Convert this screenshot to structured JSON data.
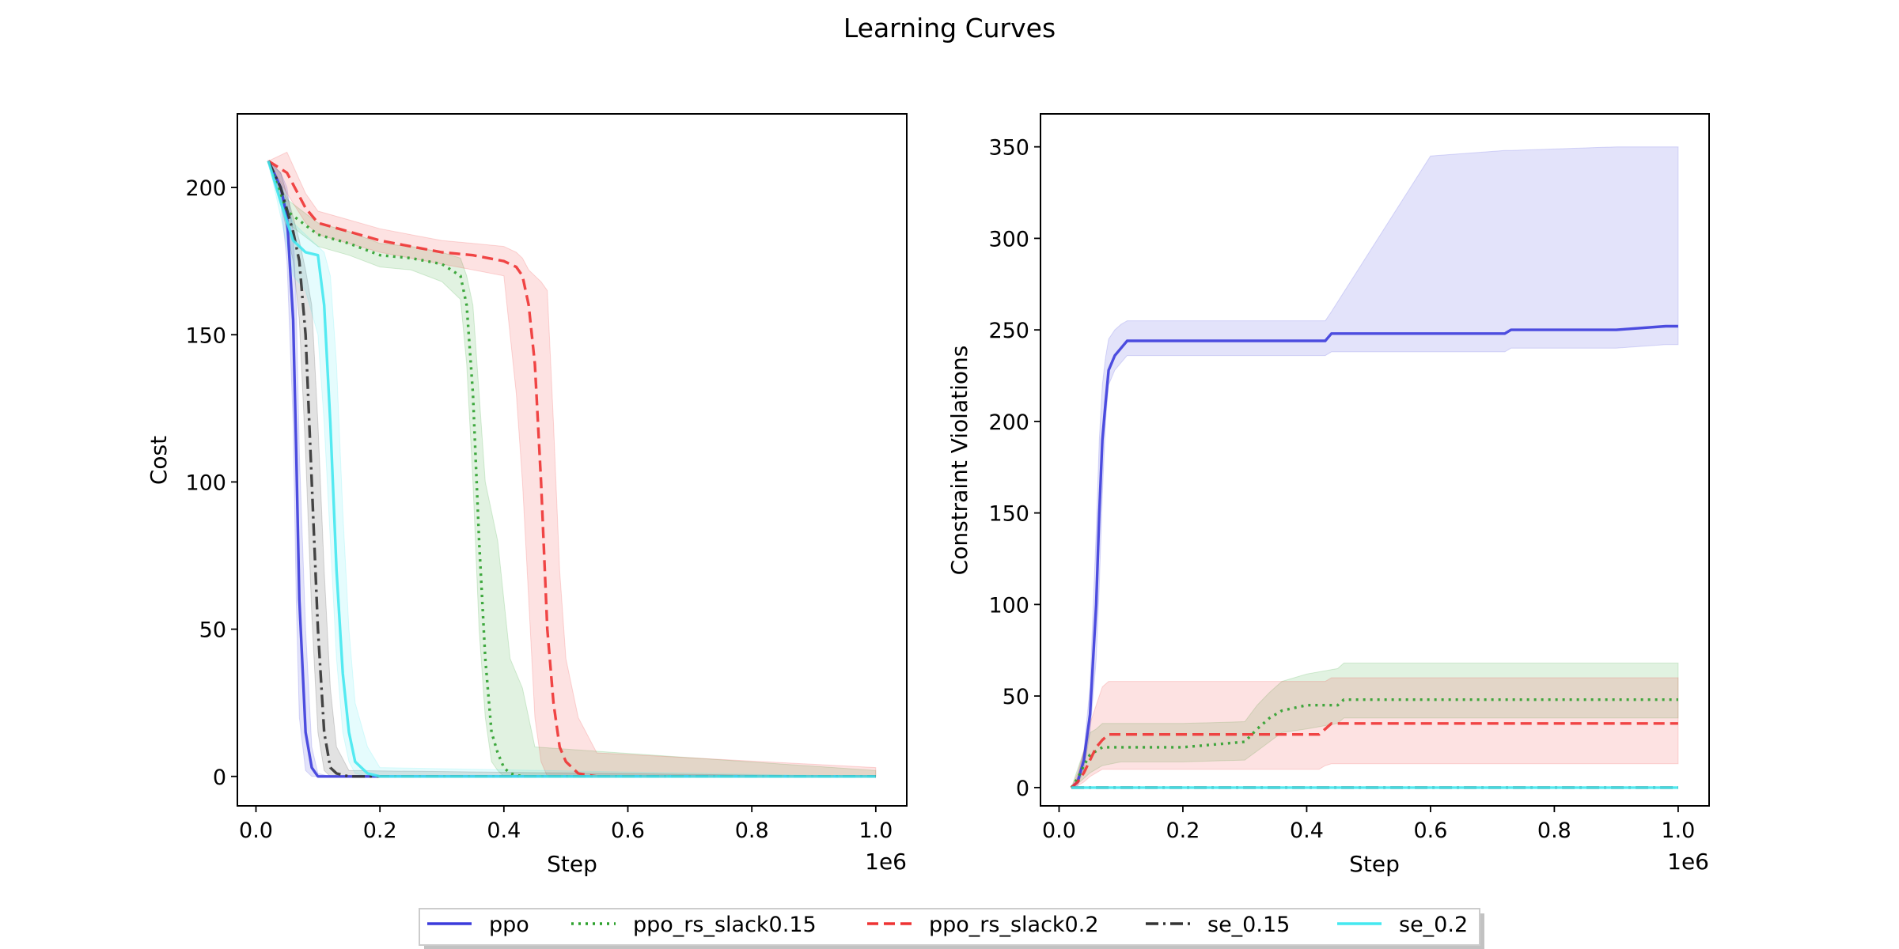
{
  "figure_title": "Learning Curves",
  "legend": {
    "entries": [
      {
        "label": "ppo",
        "color": "#3b3bdb",
        "style": "solid"
      },
      {
        "label": "ppo_rs_slack0.15",
        "color": "#2ca02c",
        "style": "dotted"
      },
      {
        "label": "ppo_rs_slack0.2",
        "color": "#ee3333",
        "style": "dashed"
      },
      {
        "label": "se_0.15",
        "color": "#333333",
        "style": "dashdot"
      },
      {
        "label": "se_0.2",
        "color": "#44e8f0",
        "style": "solid"
      }
    ]
  },
  "chart_data": [
    {
      "type": "line",
      "title": "",
      "xlabel": "Step",
      "ylabel": "Cost",
      "x_multiplier": "1e6",
      "xlim": [
        -0.03,
        1.05
      ],
      "ylim": [
        -10,
        225
      ],
      "xticks": [
        0.0,
        0.2,
        0.4,
        0.6,
        0.8,
        1.0
      ],
      "xtick_labels": [
        "0.0",
        "0.2",
        "0.4",
        "0.6",
        "0.8",
        "1.0"
      ],
      "yticks": [
        0,
        50,
        100,
        150,
        200
      ],
      "ytick_labels": [
        "0",
        "50",
        "100",
        "150",
        "200"
      ],
      "grid": false,
      "series": [
        {
          "name": "ppo",
          "color": "#3b3bdb",
          "style": "solid",
          "x": [
            0.02,
            0.04,
            0.05,
            0.06,
            0.065,
            0.07,
            0.08,
            0.09,
            0.1,
            0.12,
            1.0
          ],
          "y": [
            209,
            200,
            190,
            155,
            110,
            60,
            15,
            3,
            0,
            0,
            0
          ],
          "lower": [
            209,
            195,
            175,
            120,
            60,
            20,
            2,
            0,
            0,
            0,
            0
          ],
          "upper": [
            209,
            205,
            200,
            185,
            160,
            110,
            50,
            10,
            1,
            0,
            0
          ]
        },
        {
          "name": "ppo_rs_slack0.15",
          "color": "#2ca02c",
          "style": "dotted",
          "x": [
            0.02,
            0.05,
            0.1,
            0.15,
            0.2,
            0.25,
            0.3,
            0.33,
            0.34,
            0.35,
            0.36,
            0.37,
            0.38,
            0.39,
            0.4,
            0.41,
            0.43,
            0.45,
            1.0
          ],
          "y": [
            209,
            192,
            184,
            181,
            177,
            176,
            174,
            170,
            160,
            130,
            80,
            40,
            15,
            8,
            3,
            1,
            0,
            0,
            0
          ],
          "lower": [
            209,
            188,
            180,
            177,
            173,
            172,
            168,
            162,
            140,
            100,
            50,
            20,
            5,
            2,
            0,
            0,
            0,
            0,
            0
          ],
          "upper": [
            209,
            196,
            188,
            185,
            181,
            180,
            178,
            176,
            170,
            160,
            130,
            100,
            90,
            80,
            60,
            40,
            30,
            10,
            2
          ]
        },
        {
          "name": "ppo_rs_slack0.2",
          "color": "#ee3333",
          "style": "dashed",
          "x": [
            0.02,
            0.05,
            0.08,
            0.1,
            0.15,
            0.2,
            0.25,
            0.3,
            0.35,
            0.4,
            0.42,
            0.43,
            0.44,
            0.45,
            0.46,
            0.47,
            0.48,
            0.49,
            0.5,
            0.52,
            0.55,
            1.0
          ],
          "y": [
            209,
            205,
            193,
            188,
            185,
            182,
            180,
            178,
            177,
            175,
            173,
            170,
            160,
            140,
            100,
            50,
            25,
            10,
            5,
            1,
            0,
            0
          ],
          "lower": [
            209,
            198,
            188,
            184,
            181,
            178,
            176,
            174,
            172,
            170,
            130,
            100,
            60,
            20,
            5,
            0,
            0,
            0,
            0,
            0,
            0,
            0
          ],
          "upper": [
            209,
            212,
            198,
            192,
            189,
            186,
            184,
            182,
            181,
            180,
            178,
            176,
            172,
            170,
            168,
            165,
            120,
            70,
            40,
            20,
            8,
            3
          ]
        },
        {
          "name": "se_0.15",
          "color": "#333333",
          "style": "dashdot",
          "x": [
            0.02,
            0.04,
            0.06,
            0.07,
            0.08,
            0.09,
            0.1,
            0.11,
            0.12,
            0.13,
            0.15,
            1.0
          ],
          "y": [
            209,
            200,
            185,
            175,
            150,
            100,
            50,
            15,
            3,
            1,
            0,
            0
          ],
          "lower": [
            209,
            195,
            175,
            155,
            110,
            55,
            15,
            2,
            0,
            0,
            0,
            0
          ],
          "upper": [
            209,
            205,
            190,
            182,
            172,
            160,
            120,
            70,
            30,
            10,
            2,
            0
          ]
        },
        {
          "name": "se_0.2",
          "color": "#44e8f0",
          "style": "solid",
          "x": [
            0.02,
            0.04,
            0.06,
            0.08,
            0.1,
            0.11,
            0.12,
            0.13,
            0.14,
            0.15,
            0.16,
            0.18,
            0.2,
            1.0
          ],
          "y": [
            209,
            195,
            182,
            178,
            177,
            160,
            120,
            70,
            35,
            15,
            5,
            1,
            0,
            0
          ],
          "lower": [
            209,
            190,
            170,
            165,
            150,
            120,
            80,
            40,
            15,
            5,
            1,
            0,
            0,
            0
          ],
          "upper": [
            209,
            200,
            188,
            184,
            180,
            178,
            170,
            140,
            90,
            50,
            25,
            10,
            3,
            0
          ]
        }
      ]
    },
    {
      "type": "line",
      "title": "",
      "xlabel": "Step",
      "ylabel": "Constraint Violations",
      "x_multiplier": "1e6",
      "xlim": [
        -0.03,
        1.05
      ],
      "ylim": [
        -10,
        368
      ],
      "xticks": [
        0.0,
        0.2,
        0.4,
        0.6,
        0.8,
        1.0
      ],
      "xtick_labels": [
        "0.0",
        "0.2",
        "0.4",
        "0.6",
        "0.8",
        "1.0"
      ],
      "yticks": [
        0,
        50,
        100,
        150,
        200,
        250,
        300,
        350
      ],
      "ytick_labels": [
        "0",
        "50",
        "100",
        "150",
        "200",
        "250",
        "300",
        "350"
      ],
      "grid": false,
      "series": [
        {
          "name": "ppo",
          "color": "#3b3bdb",
          "style": "solid",
          "x": [
            0.02,
            0.03,
            0.04,
            0.05,
            0.06,
            0.065,
            0.07,
            0.075,
            0.08,
            0.09,
            0.1,
            0.11,
            0.2,
            0.3,
            0.43,
            0.44,
            0.6,
            0.72,
            0.73,
            0.9,
            0.98,
            1.0
          ],
          "y": [
            0,
            3,
            15,
            40,
            100,
            150,
            190,
            210,
            228,
            236,
            240,
            244,
            244,
            244,
            244,
            248,
            248,
            248,
            250,
            250,
            252,
            252
          ],
          "lower": [
            0,
            1,
            10,
            30,
            70,
            110,
            160,
            200,
            220,
            228,
            232,
            236,
            236,
            236,
            236,
            238,
            238,
            238,
            240,
            240,
            242,
            242
          ],
          "upper": [
            0,
            6,
            20,
            55,
            140,
            190,
            220,
            235,
            245,
            250,
            253,
            255,
            255,
            255,
            255,
            260,
            345,
            348,
            348,
            350,
            350,
            350
          ]
        },
        {
          "name": "ppo_rs_slack0.15",
          "color": "#2ca02c",
          "style": "dotted",
          "x": [
            0.02,
            0.03,
            0.04,
            0.05,
            0.06,
            0.07,
            0.1,
            0.2,
            0.3,
            0.32,
            0.34,
            0.36,
            0.4,
            0.45,
            0.46,
            0.6,
            0.8,
            1.0
          ],
          "y": [
            0,
            5,
            12,
            18,
            20,
            22,
            22,
            22,
            25,
            32,
            38,
            42,
            45,
            45,
            48,
            48,
            48,
            48
          ],
          "lower": [
            0,
            2,
            5,
            8,
            10,
            12,
            14,
            14,
            15,
            20,
            25,
            30,
            32,
            35,
            38,
            38,
            38,
            38
          ],
          "upper": [
            0,
            10,
            20,
            30,
            32,
            35,
            35,
            35,
            36,
            45,
            52,
            58,
            62,
            65,
            68,
            68,
            68,
            68
          ]
        },
        {
          "name": "ppo_rs_slack0.2",
          "color": "#ee3333",
          "style": "dashed",
          "x": [
            0.02,
            0.03,
            0.04,
            0.05,
            0.06,
            0.07,
            0.08,
            0.15,
            0.3,
            0.42,
            0.43,
            0.44,
            0.6,
            0.8,
            1.0
          ],
          "y": [
            0,
            3,
            8,
            15,
            22,
            26,
            29,
            29,
            29,
            29,
            32,
            35,
            35,
            35,
            35
          ],
          "lower": [
            0,
            1,
            3,
            6,
            8,
            10,
            10,
            10,
            10,
            10,
            12,
            13,
            13,
            13,
            13
          ],
          "upper": [
            0,
            8,
            20,
            35,
            45,
            55,
            58,
            58,
            58,
            58,
            58,
            60,
            60,
            60,
            60
          ]
        },
        {
          "name": "se_0.15",
          "color": "#333333",
          "style": "dashdot",
          "x": [
            0.02,
            1.0
          ],
          "y": [
            0,
            0
          ],
          "lower": [
            0,
            0
          ],
          "upper": [
            0,
            0
          ]
        },
        {
          "name": "se_0.2",
          "color": "#44e8f0",
          "style": "solid",
          "x": [
            0.02,
            1.0
          ],
          "y": [
            0,
            0
          ],
          "lower": [
            0,
            0
          ],
          "upper": [
            0,
            0
          ]
        }
      ]
    }
  ]
}
